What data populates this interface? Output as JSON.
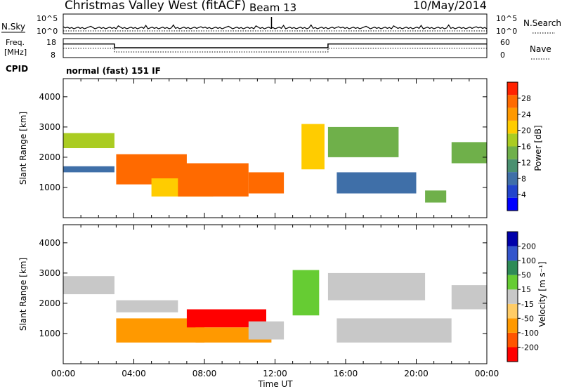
{
  "header": {
    "station": "Christmas Valley West (fitACF)",
    "beam": "Beam 13",
    "date": "10/May/2014"
  },
  "chart_data": [
    {
      "type": "line",
      "panel": "noise",
      "left_label": "N.Sky",
      "right_label": "N.Search",
      "left_ticks": [
        "10^5",
        "10^0"
      ],
      "right_ticks": [
        "10^5",
        "10^0"
      ]
    },
    {
      "type": "line",
      "panel": "frequency",
      "left_label": "Freq.",
      "left_unit": "[MHz]",
      "right_label": "Nave",
      "left_ticks": [
        "18",
        "8"
      ],
      "right_ticks": [
        "60",
        "0"
      ],
      "series": [
        {
          "name": "Freq.",
          "x": [
            0,
            2.9,
            2.9,
            15.0,
            15.0,
            24
          ],
          "y": [
            15.2,
            15.2,
            13.2,
            13.2,
            15.2,
            15.2
          ]
        }
      ]
    },
    {
      "type": "table",
      "panel": "cpid",
      "label": "CPID",
      "value": "normal (fast) 151 IF"
    },
    {
      "type": "heatmap",
      "panel": "power",
      "ylabel": "Slant Range [km]",
      "ylim": [
        0,
        4600
      ],
      "xlim": [
        0,
        24
      ],
      "yticks": [
        "4000",
        "3000",
        "2000",
        "1000"
      ],
      "colorbar_label": "Power [dB]",
      "colorbar_ticks": [
        "28",
        "24",
        "20",
        "16",
        "12",
        "8",
        "4"
      ],
      "colors": [
        "#0000ff",
        "#2244cc",
        "#3f6fa8",
        "#4a9070",
        "#6fb04a",
        "#aacc22",
        "#ffcc00",
        "#ff9900",
        "#ff6a00",
        "#ff2200"
      ],
      "patches": [
        {
          "t0": 0.0,
          "t1": 2.9,
          "r0": 2300,
          "r1": 2800,
          "v": 16
        },
        {
          "t0": 0.0,
          "t1": 2.9,
          "r0": 1500,
          "r1": 1700,
          "v": 6
        },
        {
          "t0": 3.0,
          "t1": 7.0,
          "r0": 1100,
          "r1": 2100,
          "v": 26
        },
        {
          "t0": 5.0,
          "t1": 8.5,
          "r0": 700,
          "r1": 1300,
          "v": 20
        },
        {
          "t0": 6.5,
          "t1": 10.5,
          "r0": 700,
          "r1": 1800,
          "v": 26
        },
        {
          "t0": 10.5,
          "t1": 12.5,
          "r0": 800,
          "r1": 1500,
          "v": 24
        },
        {
          "t0": 13.5,
          "t1": 14.8,
          "r0": 1600,
          "r1": 3100,
          "v": 18
        },
        {
          "t0": 15.0,
          "t1": 19.0,
          "r0": 2000,
          "r1": 3000,
          "v": 12
        },
        {
          "t0": 15.5,
          "t1": 20.0,
          "r0": 800,
          "r1": 1500,
          "v": 6
        },
        {
          "t0": 20.5,
          "t1": 21.7,
          "r0": 500,
          "r1": 900,
          "v": 14
        },
        {
          "t0": 22.0,
          "t1": 24.0,
          "r0": 1800,
          "r1": 2500,
          "v": 14
        }
      ]
    },
    {
      "type": "heatmap",
      "panel": "velocity",
      "ylabel": "Slant Range [km]",
      "xlabel": "Time UT",
      "ylim": [
        0,
        4600
      ],
      "xlim": [
        0,
        24
      ],
      "yticks": [
        "4000",
        "3000",
        "2000",
        "1000"
      ],
      "xticks": [
        "00:00",
        "04:00",
        "08:00",
        "12:00",
        "16:00",
        "20:00",
        "00:00"
      ],
      "colorbar_label": "Velocity [m s⁻¹]",
      "colorbar_ticks": [
        "200",
        "100",
        "50",
        "15",
        "-15",
        "-50",
        "-100",
        "-200"
      ],
      "colors": [
        "#ff0000",
        "#ff5500",
        "#ff9900",
        "#ffcc66",
        "#c8c8c8",
        "#66cc33",
        "#2e8b57",
        "#3355cc",
        "#0000aa"
      ],
      "patches": [
        {
          "t0": 0.0,
          "t1": 2.9,
          "r0": 2300,
          "r1": 2900,
          "v": 0
        },
        {
          "t0": 3.0,
          "t1": 6.5,
          "r0": 1700,
          "r1": 2100,
          "v": 0
        },
        {
          "t0": 3.0,
          "t1": 8.0,
          "r0": 700,
          "r1": 1500,
          "v": -60
        },
        {
          "t0": 7.0,
          "t1": 11.5,
          "r0": 1200,
          "r1": 1800,
          "v": -210
        },
        {
          "t0": 7.5,
          "t1": 11.8,
          "r0": 700,
          "r1": 1200,
          "v": -80
        },
        {
          "t0": 10.5,
          "t1": 12.5,
          "r0": 800,
          "r1": 1400,
          "v": 0
        },
        {
          "t0": 13.0,
          "t1": 14.5,
          "r0": 1600,
          "r1": 3100,
          "v": 40
        },
        {
          "t0": 15.0,
          "t1": 20.5,
          "r0": 2100,
          "r1": 3000,
          "v": 0
        },
        {
          "t0": 15.5,
          "t1": 22.0,
          "r0": 700,
          "r1": 1500,
          "v": 0
        },
        {
          "t0": 22.0,
          "t1": 24.0,
          "r0": 1800,
          "r1": 2600,
          "v": 0
        }
      ]
    }
  ]
}
